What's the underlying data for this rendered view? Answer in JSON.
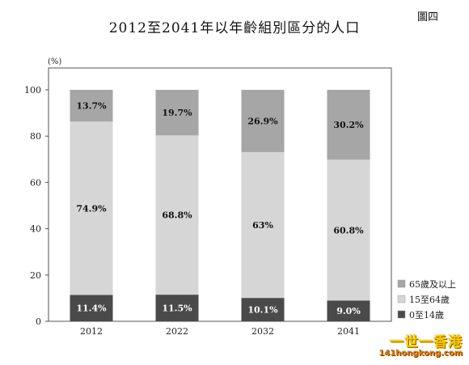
{
  "figure_label": "圖四",
  "chart_data": {
    "type": "bar",
    "stacked": true,
    "title": "2012至2041年以年齡組別區分的人口",
    "ylabel": "(%)",
    "xlabel": "",
    "ylim": [
      0,
      100
    ],
    "yticks": [
      0,
      20,
      40,
      60,
      80,
      100
    ],
    "categories": [
      "2012",
      "2022",
      "2032",
      "2041"
    ],
    "series": [
      {
        "name": "0至14歲",
        "values": [
          11.4,
          11.5,
          10.1,
          9.0
        ],
        "labels": [
          "11.4%",
          "11.5%",
          "10.1%",
          "9.0%"
        ],
        "color": "#4a4a4a",
        "label_color": "#ffffff"
      },
      {
        "name": "15至64歲",
        "values": [
          74.9,
          68.8,
          63,
          60.8
        ],
        "labels": [
          "74.9%",
          "68.8%",
          "63%",
          "60.8%"
        ],
        "color": "#d6d6d6",
        "label_color": "#111111"
      },
      {
        "name": "65歲及以上",
        "values": [
          13.7,
          19.7,
          26.9,
          30.2
        ],
        "labels": [
          "13.7%",
          "19.7%",
          "26.9%",
          "30.2%"
        ],
        "color": "#a6a6a6",
        "label_color": "#111111"
      }
    ],
    "legend_order": [
      2,
      1,
      0
    ],
    "legend_position": "bottom-right",
    "grid": false
  },
  "watermark": {
    "top": "一世一香港",
    "bottom": "141hongkong.com"
  }
}
